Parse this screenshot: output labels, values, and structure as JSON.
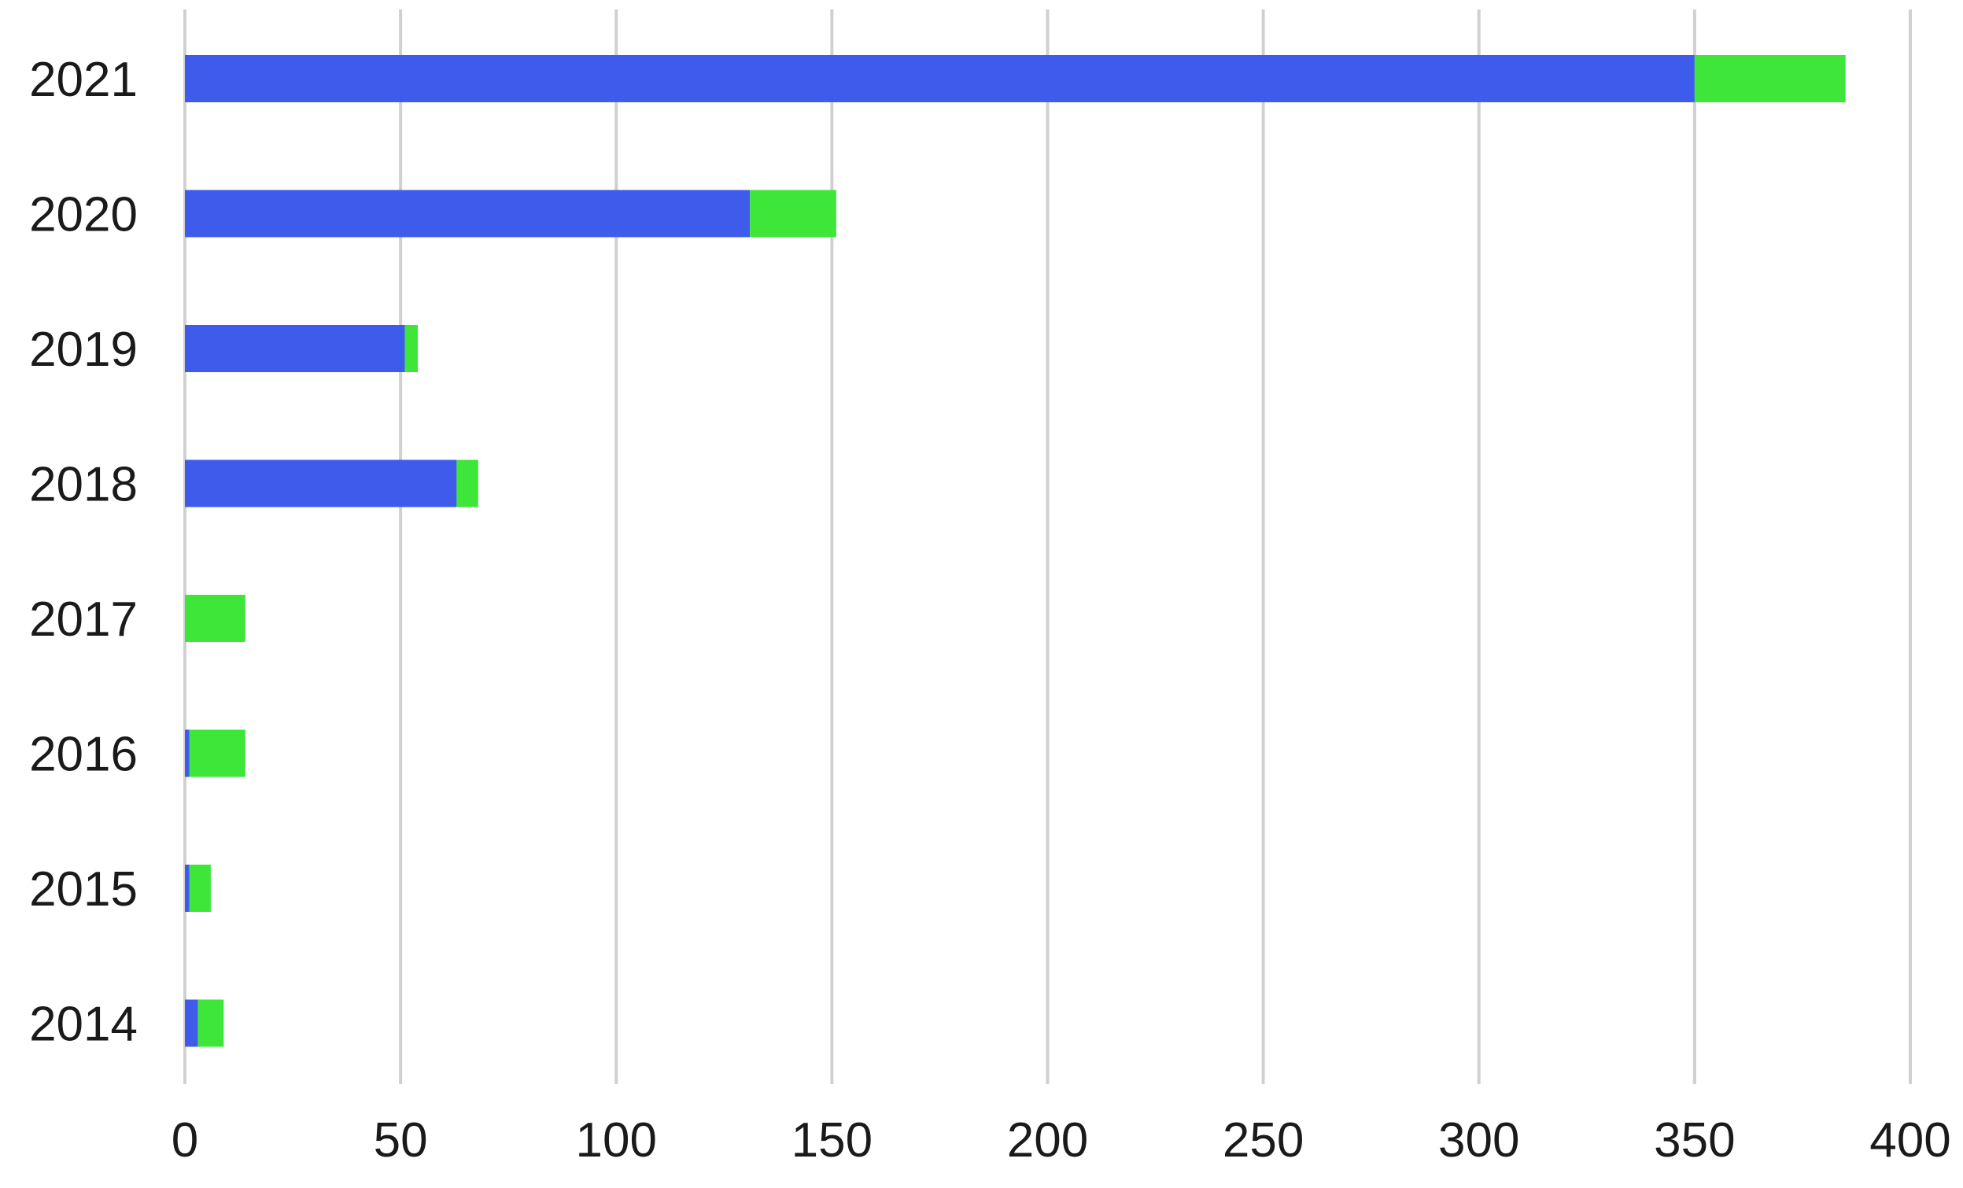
{
  "chart_data": {
    "type": "bar",
    "orientation": "horizontal",
    "stacked": true,
    "categories": [
      "2021",
      "2020",
      "2019",
      "2018",
      "2017",
      "2016",
      "2015",
      "2014"
    ],
    "series": [
      {
        "color": "#3f5bec",
        "values": [
          350,
          131,
          51,
          63,
          0,
          1,
          1,
          3
        ]
      },
      {
        "color": "#3ee63a",
        "values": [
          35,
          20,
          3,
          5,
          14,
          13,
          5,
          6
        ]
      }
    ],
    "xlim": [
      0,
      400
    ],
    "xticks": [
      "0",
      "50",
      "100",
      "150",
      "200",
      "250",
      "300",
      "350",
      "400"
    ],
    "title": "",
    "xlabel": "",
    "ylabel": "",
    "grid": "vertical",
    "legend": "none",
    "gridline_color": "#d0d0d0"
  }
}
